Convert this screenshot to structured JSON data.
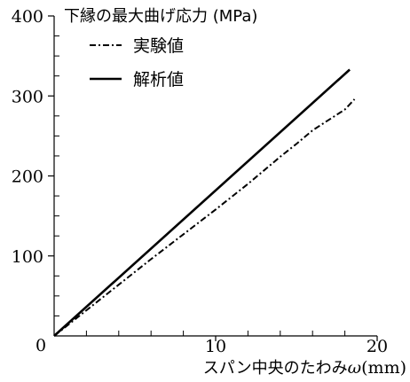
{
  "chart_data": {
    "type": "line",
    "ylabel": "下縁の最大曲げ応力 (MPa)",
    "xlabel_prefix": "スパン中央のたわみ",
    "xlabel_symbol": "ω",
    "xlabel_unit": "(mm)",
    "xlim": [
      0,
      20
    ],
    "ylim": [
      0,
      400
    ],
    "x_ticks": [
      0,
      10,
      20
    ],
    "x_tick_labels": [
      "0",
      "10",
      "20"
    ],
    "y_ticks": [
      100,
      200,
      300,
      400
    ],
    "y_tick_labels": [
      "100",
      "200",
      "300",
      "400"
    ],
    "origin_label": "0",
    "x_minor_step": 2,
    "y_minor_step": 25,
    "grid": false,
    "legend_position": "top-left",
    "series": [
      {
        "name": "実験値",
        "style": "dash-dot",
        "color": "#000000",
        "x": [
          0,
          2,
          4,
          6,
          8,
          10,
          12,
          13,
          14,
          15,
          16,
          17,
          18,
          18.6
        ],
        "y": [
          0,
          32,
          64,
          96,
          127,
          158,
          190,
          207,
          224,
          240,
          257,
          270,
          283,
          296
        ]
      },
      {
        "name": "解析値",
        "style": "solid",
        "color": "#000000",
        "x": [
          0,
          18.3
        ],
        "y": [
          0,
          333
        ]
      }
    ]
  }
}
